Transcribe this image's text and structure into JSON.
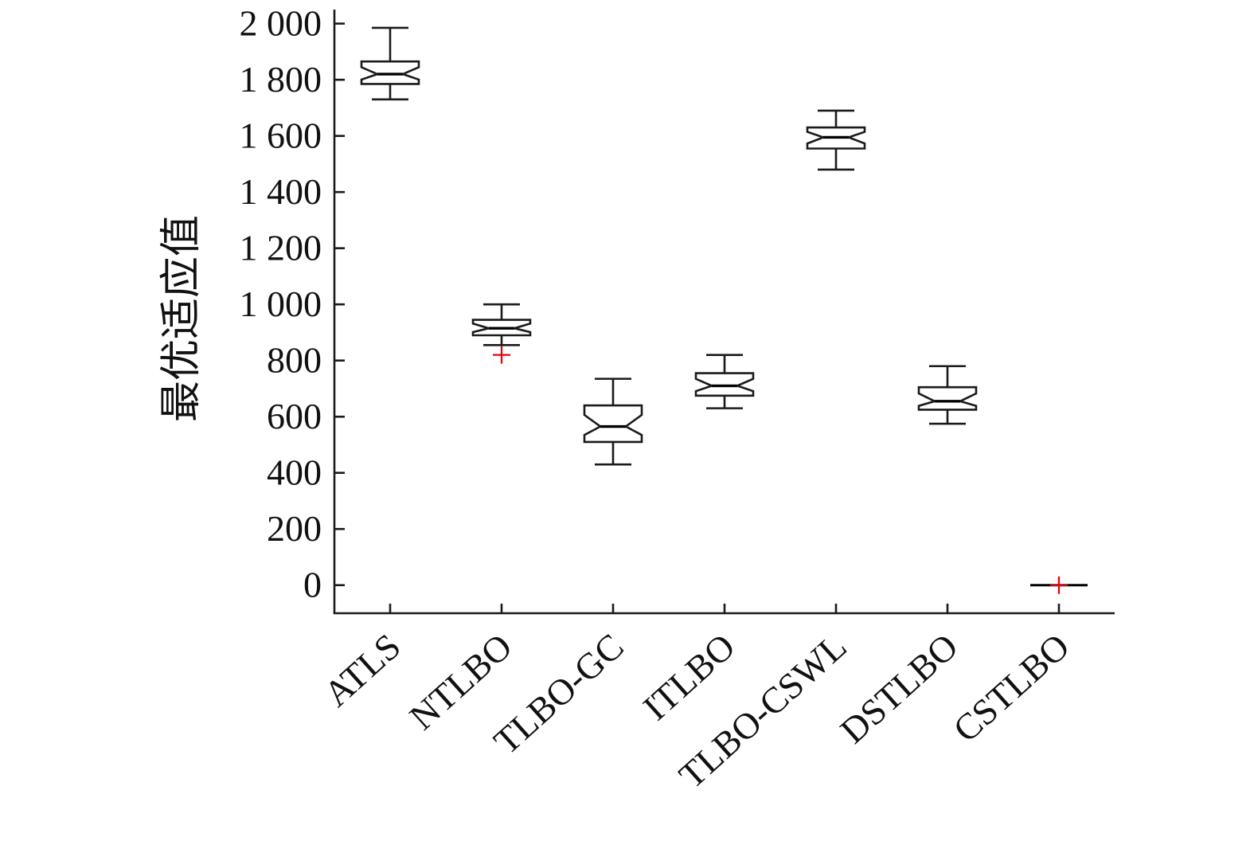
{
  "chart_data": {
    "type": "boxplot",
    "title": "",
    "xlabel": "",
    "ylabel": "最优适应值",
    "ylim": [
      0,
      2000
    ],
    "grid": false,
    "legend": "none",
    "yticks": [
      0,
      200,
      400,
      600,
      800,
      1000,
      1200,
      1400,
      1600,
      1800,
      2000
    ],
    "ytick_labels": [
      "0",
      "200",
      "400",
      "600",
      "800",
      "1 000",
      "1 200",
      "1 400",
      "1 600",
      "1 800",
      "2 000"
    ],
    "categories": [
      "ATLS",
      "NTLBO",
      "TLBO-GC",
      "ITLBO",
      "TLBO-CSWL",
      "DSTLBO",
      "CSTLBO"
    ],
    "boxes": [
      {
        "label": "ATLS",
        "whisker_low": 1730,
        "q1": 1785,
        "median": 1820,
        "q3": 1865,
        "whisker_high": 1985,
        "outliers": []
      },
      {
        "label": "NTLBO",
        "whisker_low": 855,
        "q1": 890,
        "median": 915,
        "q3": 945,
        "whisker_high": 1000,
        "outliers": [
          820
        ]
      },
      {
        "label": "TLBO-GC",
        "whisker_low": 430,
        "q1": 510,
        "median": 565,
        "q3": 640,
        "whisker_high": 735,
        "outliers": []
      },
      {
        "label": "ITLBO",
        "whisker_low": 630,
        "q1": 675,
        "median": 710,
        "q3": 755,
        "whisker_high": 820,
        "outliers": []
      },
      {
        "label": "TLBO-CSWL",
        "whisker_low": 1480,
        "q1": 1555,
        "median": 1595,
        "q3": 1630,
        "whisker_high": 1690,
        "outliers": []
      },
      {
        "label": "DSTLBO",
        "whisker_low": 575,
        "q1": 625,
        "median": 655,
        "q3": 705,
        "whisker_high": 780,
        "outliers": []
      },
      {
        "label": "CSTLBO",
        "whisker_low": 0,
        "q1": 0,
        "median": 0,
        "q3": 0,
        "whisker_high": 0,
        "outliers": [
          0
        ]
      }
    ],
    "colors": {
      "line": "#1a1a1a",
      "median": "#000000",
      "outlier": "#e8000b",
      "box_fill": "#ffffff",
      "background": "#ffffff"
    }
  }
}
